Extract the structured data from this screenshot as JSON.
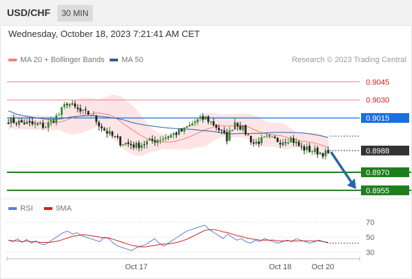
{
  "header": {
    "symbol": "USD/CHF",
    "timeframe": "30 MIN"
  },
  "timestamp": "Wednesday, October 18, 2023 7:21:41 AM CET",
  "legend": {
    "main": [
      {
        "label": "MA 20 + Bollinger Bands",
        "color": "#f08080"
      },
      {
        "label": "MA 50",
        "color": "#2e5f9e"
      }
    ],
    "rsi": [
      {
        "label": "RSI",
        "color": "#5b7fd6"
      },
      {
        "label": "9MA",
        "color": "#d32020"
      }
    ]
  },
  "credit": "Research © 2023 Trading Central",
  "colors": {
    "up": "#2e8b2e",
    "down": "#222222",
    "resistance": "#f08080",
    "support": "#1e7e1e",
    "pivot": "#1a6ee0",
    "current": "#333333"
  },
  "chart_data": [
    {
      "type": "candlestick",
      "ylim": [
        8948,
        9055
      ],
      "levels": [
        {
          "value": 9045,
          "label": "0.9045",
          "kind": "resistance"
        },
        {
          "value": 9030,
          "label": "0.9030",
          "kind": "resistance"
        },
        {
          "value": 9015,
          "label": "0.9015",
          "kind": "pivot"
        },
        {
          "value": 8988,
          "label": "0.8988",
          "kind": "current"
        },
        {
          "value": 8970,
          "label": "0.8970",
          "kind": "support"
        },
        {
          "value": 8955,
          "label": "0.8955",
          "kind": "support"
        }
      ],
      "x_ticks": [
        {
          "index": 48,
          "label": "Oct 17"
        },
        {
          "index": 102,
          "label": "Oct 18"
        },
        {
          "index": 118,
          "label": "Oct 20"
        }
      ],
      "projection": {
        "from": 8988,
        "to": 8955,
        "direction": "down"
      }
    },
    {
      "type": "line",
      "name": "RSI",
      "ylim": [
        24,
        76
      ],
      "ticks": [
        70,
        50,
        30
      ],
      "series": [
        {
          "name": "RSI",
          "values": [
            46,
            44,
            48,
            43,
            47,
            42,
            45,
            41,
            40,
            44,
            48,
            52,
            56,
            58,
            54,
            56,
            52,
            50,
            48,
            46,
            44,
            50,
            48,
            42,
            38,
            36,
            34,
            32,
            36,
            38,
            40,
            44,
            48,
            42,
            38,
            42,
            46,
            50,
            54,
            58,
            60,
            62,
            64,
            66,
            60,
            56,
            52,
            48,
            54,
            50,
            46,
            48,
            44,
            42,
            46,
            44,
            48,
            46,
            44,
            42,
            44,
            46,
            44,
            48,
            46,
            44,
            42,
            44,
            46,
            44,
            42
          ]
        },
        {
          "name": "9MA",
          "values": [
            46,
            45,
            45,
            44,
            45,
            44,
            44,
            43,
            43,
            43,
            44,
            45,
            47,
            49,
            51,
            52,
            53,
            53,
            52,
            51,
            50,
            49,
            49,
            47,
            45,
            43,
            41,
            39,
            38,
            37,
            37,
            38,
            39,
            40,
            41,
            41,
            42,
            43,
            45,
            47,
            50,
            53,
            56,
            59,
            60,
            60,
            59,
            57,
            56,
            54,
            52,
            51,
            49,
            48,
            47,
            46,
            46,
            46,
            46,
            45,
            45,
            45,
            45,
            45,
            45,
            45,
            45,
            45,
            45,
            44,
            43
          ]
        }
      ]
    }
  ]
}
